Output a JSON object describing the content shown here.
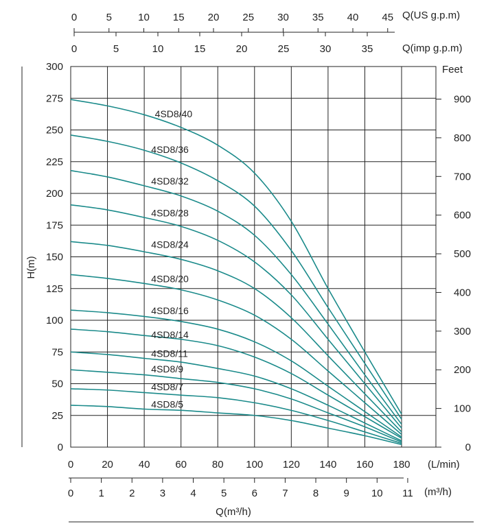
{
  "chart_data": {
    "type": "line",
    "x_axis": {
      "label": "(L/min)",
      "ticks": [
        "0",
        "20",
        "40",
        "60",
        "80",
        "100",
        "120",
        "140",
        "160",
        "180"
      ],
      "range": [
        0,
        180
      ]
    },
    "x_axis_m3h": {
      "label": "(m³/h)",
      "ticks": [
        "0",
        "1",
        "2",
        "3",
        "4",
        "5",
        "6",
        "7",
        "8",
        "9",
        "10",
        "11"
      ]
    },
    "x_axis_bottom_title": "Q(m³/h)",
    "top_axis_us": {
      "label": "Q(US g.p.m)",
      "ticks": [
        "0",
        "5",
        "10",
        "15",
        "20",
        "25",
        "30",
        "35",
        "40",
        "45"
      ]
    },
    "top_axis_imp": {
      "label": "Q(imp g.p.m)",
      "ticks": [
        "0",
        "5",
        "10",
        "15",
        "20",
        "25",
        "30",
        "35"
      ]
    },
    "y_axis": {
      "label": "H(m)",
      "ticks": [
        "0",
        "25",
        "50",
        "75",
        "100",
        "125",
        "150",
        "175",
        "200",
        "225",
        "250",
        "275",
        "300"
      ],
      "range": [
        0,
        300
      ]
    },
    "y2_axis": {
      "label": "Feet",
      "ticks": [
        "0",
        "100",
        "200",
        "300",
        "400",
        "500",
        "600",
        "700",
        "800",
        "900"
      ]
    },
    "grid": true,
    "line_color": "#1a8a8a",
    "series": [
      {
        "name": "4SD8/40",
        "label_at": [
          60,
          260
        ],
        "points": [
          [
            0,
            274
          ],
          [
            20,
            269
          ],
          [
            40,
            262
          ],
          [
            60,
            252
          ],
          [
            80,
            238
          ],
          [
            100,
            216
          ],
          [
            120,
            178
          ],
          [
            140,
            125
          ],
          [
            160,
            75
          ],
          [
            180,
            26
          ]
        ]
      },
      {
        "name": "4SD8/36",
        "label_at": [
          58,
          232
        ],
        "points": [
          [
            0,
            246
          ],
          [
            20,
            241
          ],
          [
            40,
            234
          ],
          [
            60,
            224
          ],
          [
            80,
            210
          ],
          [
            100,
            190
          ],
          [
            120,
            155
          ],
          [
            140,
            110
          ],
          [
            160,
            66
          ],
          [
            180,
            22
          ]
        ]
      },
      {
        "name": "4SD8/32",
        "label_at": [
          58,
          207
        ],
        "points": [
          [
            0,
            218
          ],
          [
            20,
            213
          ],
          [
            40,
            206
          ],
          [
            60,
            198
          ],
          [
            80,
            186
          ],
          [
            100,
            167
          ],
          [
            120,
            136
          ],
          [
            140,
            97
          ],
          [
            160,
            57
          ],
          [
            180,
            18
          ]
        ]
      },
      {
        "name": "4SD8/28",
        "label_at": [
          58,
          182
        ],
        "points": [
          [
            0,
            191
          ],
          [
            20,
            187
          ],
          [
            40,
            181
          ],
          [
            60,
            174
          ],
          [
            80,
            163
          ],
          [
            100,
            146
          ],
          [
            120,
            120
          ],
          [
            140,
            85
          ],
          [
            160,
            50
          ],
          [
            180,
            15
          ]
        ]
      },
      {
        "name": "4SD8/24",
        "label_at": [
          58,
          157
        ],
        "points": [
          [
            0,
            162
          ],
          [
            20,
            159
          ],
          [
            40,
            154
          ],
          [
            60,
            148
          ],
          [
            80,
            139
          ],
          [
            100,
            125
          ],
          [
            120,
            102
          ],
          [
            140,
            72
          ],
          [
            160,
            42
          ],
          [
            180,
            12
          ]
        ]
      },
      {
        "name": "4SD8/20",
        "label_at": [
          58,
          130
        ],
        "points": [
          [
            0,
            136
          ],
          [
            20,
            133
          ],
          [
            40,
            129
          ],
          [
            60,
            124
          ],
          [
            80,
            116
          ],
          [
            100,
            104
          ],
          [
            120,
            85
          ],
          [
            140,
            60
          ],
          [
            160,
            35
          ],
          [
            180,
            10
          ]
        ]
      },
      {
        "name": "4SD8/16",
        "label_at": [
          58,
          105
        ],
        "points": [
          [
            0,
            108
          ],
          [
            20,
            106
          ],
          [
            40,
            103
          ],
          [
            60,
            99
          ],
          [
            80,
            93
          ],
          [
            100,
            83
          ],
          [
            120,
            68
          ],
          [
            140,
            48
          ],
          [
            160,
            28
          ],
          [
            180,
            8
          ]
        ]
      },
      {
        "name": "4SD8/14",
        "label_at": [
          58,
          86
        ],
        "points": [
          [
            0,
            93
          ],
          [
            20,
            91
          ],
          [
            40,
            88
          ],
          [
            60,
            85
          ],
          [
            80,
            80
          ],
          [
            100,
            71
          ],
          [
            120,
            58
          ],
          [
            140,
            41
          ],
          [
            160,
            24
          ],
          [
            180,
            7
          ]
        ]
      },
      {
        "name": "4SD8/11",
        "label_at": [
          58,
          71
        ],
        "points": [
          [
            0,
            75
          ],
          [
            20,
            73
          ],
          [
            40,
            70
          ],
          [
            60,
            67
          ],
          [
            80,
            62
          ],
          [
            100,
            56
          ],
          [
            120,
            46
          ],
          [
            140,
            33
          ],
          [
            160,
            19
          ],
          [
            180,
            5
          ]
        ]
      },
      {
        "name": "4SD8/9",
        "label_at": [
          58,
          59
        ],
        "points": [
          [
            0,
            61
          ],
          [
            20,
            59
          ],
          [
            40,
            57
          ],
          [
            60,
            54
          ],
          [
            80,
            51
          ],
          [
            100,
            46
          ],
          [
            120,
            38
          ],
          [
            140,
            27
          ],
          [
            160,
            16
          ],
          [
            180,
            4
          ]
        ]
      },
      {
        "name": "4SD8/7",
        "label_at": [
          58,
          45
        ],
        "points": [
          [
            0,
            46
          ],
          [
            20,
            45
          ],
          [
            40,
            43
          ],
          [
            60,
            41
          ],
          [
            80,
            39
          ],
          [
            100,
            35
          ],
          [
            120,
            29
          ],
          [
            140,
            21
          ],
          [
            160,
            12
          ],
          [
            180,
            3
          ]
        ]
      },
      {
        "name": "4SD8/5",
        "label_at": [
          58,
          31
        ],
        "points": [
          [
            0,
            33
          ],
          [
            20,
            32
          ],
          [
            40,
            30
          ],
          [
            60,
            29
          ],
          [
            80,
            27
          ],
          [
            100,
            25
          ],
          [
            120,
            21
          ],
          [
            140,
            15
          ],
          [
            160,
            9
          ],
          [
            180,
            2
          ]
        ]
      }
    ]
  }
}
